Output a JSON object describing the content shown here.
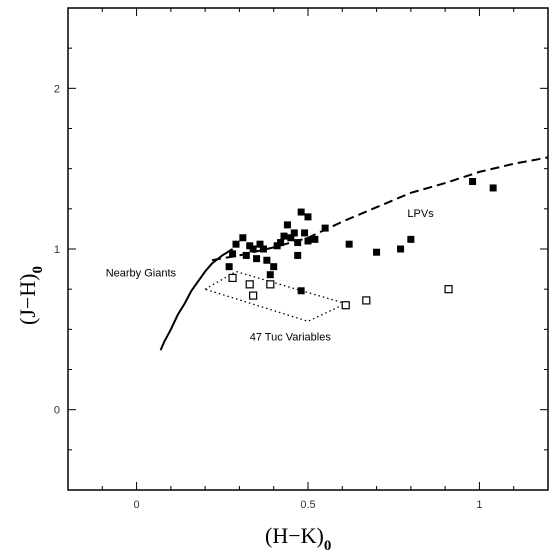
{
  "chart_data": {
    "type": "scatter",
    "title": "",
    "xlabel": "(H−K)",
    "xlabel_sub": "0",
    "ylabel": "(J−H)",
    "ylabel_sub": "0",
    "xlim": [
      -0.2,
      1.2
    ],
    "ylim": [
      -0.5,
      2.5
    ],
    "x_ticks": [
      0,
      0.5,
      1
    ],
    "x_tick_labels": [
      "0",
      "0.5",
      "1"
    ],
    "y_ticks": [
      0,
      1,
      2
    ],
    "y_tick_labels": [
      "0",
      "1",
      "2"
    ],
    "x_minor_step": 0.1,
    "y_minor_step": 0.25,
    "grid": false,
    "series": [
      {
        "name": "",
        "kind": "filled-squares",
        "points": [
          [
            0.27,
            0.89
          ],
          [
            0.28,
            0.97
          ],
          [
            0.29,
            1.03
          ],
          [
            0.31,
            1.07
          ],
          [
            0.32,
            0.96
          ],
          [
            0.33,
            1.02
          ],
          [
            0.34,
            1.0
          ],
          [
            0.35,
            0.94
          ],
          [
            0.36,
            1.03
          ],
          [
            0.37,
            1.0
          ],
          [
            0.38,
            0.93
          ],
          [
            0.39,
            0.84
          ],
          [
            0.4,
            0.89
          ],
          [
            0.41,
            1.02
          ],
          [
            0.42,
            1.04
          ],
          [
            0.43,
            1.08
          ],
          [
            0.44,
            1.15
          ],
          [
            0.45,
            1.07
          ],
          [
            0.46,
            1.1
          ],
          [
            0.47,
            1.04
          ],
          [
            0.47,
            0.96
          ],
          [
            0.48,
            1.23
          ],
          [
            0.49,
            1.1
          ],
          [
            0.5,
            1.2
          ],
          [
            0.5,
            1.05
          ],
          [
            0.52,
            1.06
          ],
          [
            0.55,
            1.13
          ],
          [
            0.48,
            0.74
          ],
          [
            0.62,
            1.03
          ],
          [
            0.7,
            0.98
          ],
          [
            0.77,
            1.0
          ],
          [
            0.8,
            1.06
          ],
          [
            0.98,
            1.42
          ],
          [
            1.04,
            1.38
          ]
        ]
      },
      {
        "name": "",
        "kind": "open-squares",
        "points": [
          [
            0.28,
            0.82
          ],
          [
            0.33,
            0.78
          ],
          [
            0.34,
            0.71
          ],
          [
            0.39,
            0.78
          ],
          [
            0.61,
            0.65
          ],
          [
            0.67,
            0.68
          ],
          [
            0.91,
            0.75
          ]
        ]
      },
      {
        "name": "",
        "kind": "solid-line",
        "points": [
          [
            0.07,
            0.37
          ],
          [
            0.08,
            0.42
          ],
          [
            0.1,
            0.5
          ],
          [
            0.12,
            0.59
          ],
          [
            0.14,
            0.66
          ],
          [
            0.16,
            0.74
          ],
          [
            0.18,
            0.8
          ],
          [
            0.2,
            0.86
          ],
          [
            0.22,
            0.91
          ],
          [
            0.25,
            0.96
          ],
          [
            0.28,
            1.0
          ]
        ]
      },
      {
        "name": "",
        "kind": "dashed-line",
        "points": [
          [
            0.22,
            0.93
          ],
          [
            0.3,
            0.96
          ],
          [
            0.4,
            1.01
          ],
          [
            0.5,
            1.07
          ],
          [
            0.6,
            1.17
          ],
          [
            0.7,
            1.26
          ],
          [
            0.8,
            1.35
          ],
          [
            0.9,
            1.41
          ],
          [
            1.0,
            1.48
          ],
          [
            1.1,
            1.53
          ],
          [
            1.2,
            1.57
          ]
        ]
      },
      {
        "name": "",
        "kind": "dotted-polygon",
        "points": [
          [
            0.2,
            0.75
          ],
          [
            0.29,
            0.86
          ],
          [
            0.61,
            0.66
          ],
          [
            0.5,
            0.55
          ],
          [
            0.2,
            0.75
          ]
        ]
      }
    ],
    "annotations": [
      {
        "text": "Nearby Giants",
        "x": -0.09,
        "y": 0.83
      },
      {
        "text": "LPVs",
        "x": 0.79,
        "y": 1.2
      },
      {
        "text": "47 Tuc Variables",
        "x": 0.33,
        "y": 0.43
      }
    ]
  }
}
